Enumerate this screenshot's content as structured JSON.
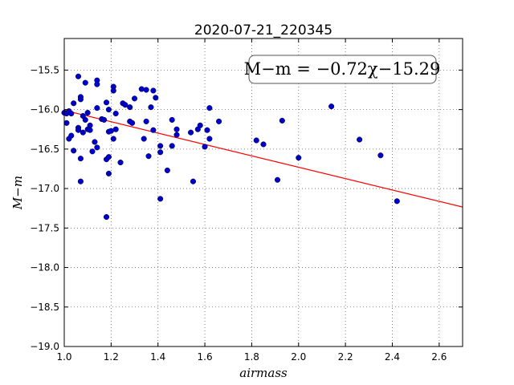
{
  "chart_data": {
    "type": "scatter",
    "title": "2020-07-21_220345",
    "xlabel": "airmass",
    "ylabel": "M−m",
    "xlim": [
      1.0,
      2.7
    ],
    "ylim": [
      -19.0,
      -15.1
    ],
    "xticks": [
      1.0,
      1.2,
      1.4,
      1.6,
      1.8,
      2.0,
      2.2,
      2.4,
      2.6
    ],
    "xtick_labels": [
      "1.0",
      "1.2",
      "1.4",
      "1.6",
      "1.8",
      "2.0",
      "2.2",
      "2.4",
      "2.6"
    ],
    "yticks": [
      -15.5,
      -16.0,
      -16.5,
      -17.0,
      -17.5,
      -18.0,
      -18.5,
      -19.0
    ],
    "ytick_labels": [
      "−15.5",
      "−16.0",
      "−16.5",
      "−17.0",
      "−17.5",
      "−18.0",
      "−18.5",
      "−19.0"
    ],
    "grid": true,
    "annotation": "M−m = −0.72χ−15.29",
    "fit": {
      "slope": -0.72,
      "intercept": -15.29,
      "x_range": [
        1.0,
        2.7
      ],
      "color": "#ff0000"
    },
    "series": [
      {
        "color": "#0000cc",
        "points": [
          [
            1.0,
            -16.04
          ],
          [
            1.01,
            -16.05
          ],
          [
            1.01,
            -16.17
          ],
          [
            1.02,
            -16.02
          ],
          [
            1.02,
            -16.37
          ],
          [
            1.03,
            -16.33
          ],
          [
            1.03,
            -16.05
          ],
          [
            1.04,
            -15.92
          ],
          [
            1.04,
            -16.52
          ],
          [
            1.06,
            -15.58
          ],
          [
            1.06,
            -16.23
          ],
          [
            1.06,
            -16.26
          ],
          [
            1.07,
            -15.84
          ],
          [
            1.07,
            -15.87
          ],
          [
            1.07,
            -16.62
          ],
          [
            1.07,
            -16.91
          ],
          [
            1.08,
            -16.08
          ],
          [
            1.08,
            -16.29
          ],
          [
            1.09,
            -15.66
          ],
          [
            1.09,
            -16.13
          ],
          [
            1.1,
            -16.04
          ],
          [
            1.1,
            -16.25
          ],
          [
            1.11,
            -16.2
          ],
          [
            1.11,
            -16.26
          ],
          [
            1.12,
            -16.53
          ],
          [
            1.13,
            -16.41
          ],
          [
            1.14,
            -15.63
          ],
          [
            1.14,
            -15.68
          ],
          [
            1.14,
            -15.98
          ],
          [
            1.14,
            -16.48
          ],
          [
            1.16,
            -16.12
          ],
          [
            1.17,
            -16.13
          ],
          [
            1.18,
            -15.91
          ],
          [
            1.18,
            -16.63
          ],
          [
            1.18,
            -17.36
          ],
          [
            1.19,
            -16.0
          ],
          [
            1.19,
            -16.28
          ],
          [
            1.19,
            -16.6
          ],
          [
            1.19,
            -16.81
          ],
          [
            1.2,
            -16.27
          ],
          [
            1.21,
            -15.71
          ],
          [
            1.21,
            -15.76
          ],
          [
            1.21,
            -16.37
          ],
          [
            1.22,
            -16.05
          ],
          [
            1.22,
            -16.25
          ],
          [
            1.24,
            -16.67
          ],
          [
            1.25,
            -15.92
          ],
          [
            1.26,
            -15.94
          ],
          [
            1.28,
            -15.97
          ],
          [
            1.28,
            -16.15
          ],
          [
            1.29,
            -16.17
          ],
          [
            1.3,
            -15.86
          ],
          [
            1.33,
            -15.74
          ],
          [
            1.34,
            -16.37
          ],
          [
            1.35,
            -15.75
          ],
          [
            1.35,
            -16.15
          ],
          [
            1.36,
            -16.59
          ],
          [
            1.37,
            -15.97
          ],
          [
            1.38,
            -15.76
          ],
          [
            1.38,
            -16.26
          ],
          [
            1.39,
            -15.85
          ],
          [
            1.41,
            -16.46
          ],
          [
            1.41,
            -16.54
          ],
          [
            1.41,
            -17.13
          ],
          [
            1.44,
            -16.77
          ],
          [
            1.46,
            -16.13
          ],
          [
            1.46,
            -16.46
          ],
          [
            1.48,
            -16.25
          ],
          [
            1.48,
            -16.32
          ],
          [
            1.54,
            -16.29
          ],
          [
            1.55,
            -16.91
          ],
          [
            1.57,
            -16.25
          ],
          [
            1.58,
            -16.2
          ],
          [
            1.6,
            -16.47
          ],
          [
            1.61,
            -16.26
          ],
          [
            1.62,
            -15.98
          ],
          [
            1.62,
            -16.37
          ],
          [
            1.66,
            -16.15
          ],
          [
            1.82,
            -16.39
          ],
          [
            1.85,
            -16.44
          ],
          [
            1.91,
            -16.89
          ],
          [
            1.93,
            -16.14
          ],
          [
            2.0,
            -16.61
          ],
          [
            2.14,
            -15.96
          ],
          [
            2.26,
            -16.38
          ],
          [
            2.35,
            -16.58
          ],
          [
            2.42,
            -17.16
          ]
        ]
      }
    ]
  }
}
